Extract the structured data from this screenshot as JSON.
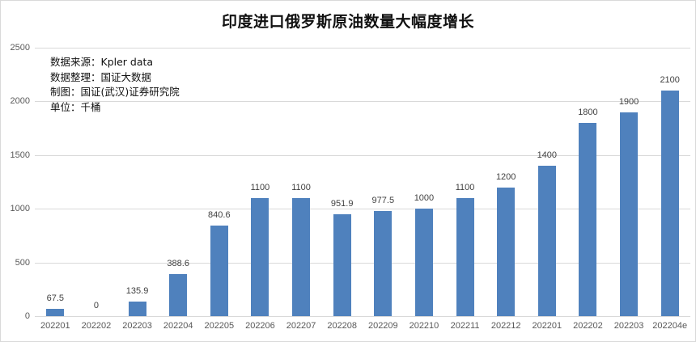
{
  "chart_data": {
    "type": "bar",
    "title": "印度进口俄罗斯原油数量大幅度增长",
    "xlabel": "",
    "ylabel": "",
    "ylim": [
      0,
      2500
    ],
    "yticks": [
      0,
      500,
      1000,
      1500,
      2000,
      2500
    ],
    "grid": true,
    "legend": "none",
    "categories": [
      "202201",
      "202202",
      "202203",
      "202204",
      "202205",
      "202206",
      "202207",
      "202208",
      "202209",
      "202210",
      "202211",
      "202212",
      "202201",
      "202202",
      "202203",
      "202204e"
    ],
    "values": [
      67.5,
      0,
      135.9,
      388.6,
      840.6,
      1100,
      1100,
      951.9,
      977.5,
      1000,
      1100,
      1200,
      1400,
      1800,
      1900,
      2100
    ],
    "value_labels": [
      "67.5",
      "0",
      "135.9",
      "388.6",
      "840.6",
      "1100",
      "1100",
      "951.9",
      "977.5",
      "1000",
      "1100",
      "1200",
      "1400",
      "1800",
      "1900",
      "2100"
    ],
    "bar_color": "#4f81bd",
    "annotations": [
      "数据来源：Kpler data",
      "数据整理：国证大数据",
      "制图：国证(武汉)证券研究院",
      "单位：千桶"
    ]
  },
  "header": {
    "title": "印度进口俄罗斯原油数量大幅度增长"
  },
  "notes": {
    "source": "数据来源：Kpler data",
    "compiled": "数据整理：国证大数据",
    "drawn": "制图：国证(武汉)证券研究院",
    "unit": "单位：千桶"
  },
  "colors": {
    "bar": "#4f81bd",
    "grid": "#d9d9d9",
    "axis_text": "#595959"
  }
}
